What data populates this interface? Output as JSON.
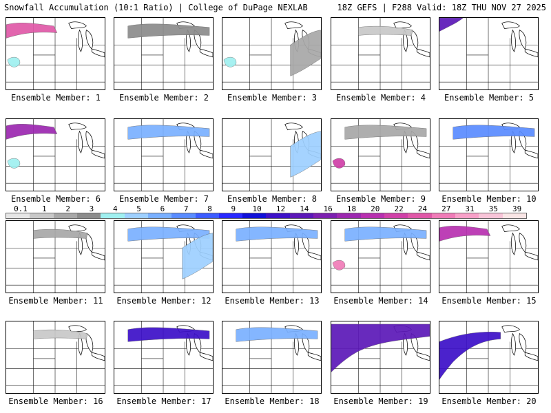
{
  "header": {
    "title": "Snowfall Accumulation (10:1 Ratio) | College of DuPage NEXLAB",
    "run_info": "18Z GEFS | F288 Valid: 18Z THU NOV 27 2025"
  },
  "members": [
    {
      "label": "Ensemble Member: 1",
      "snow": [
        {
          "v": 24,
          "blob": "nw-strip"
        },
        {
          "v": 4,
          "blob": "west-spot"
        }
      ]
    },
    {
      "label": "Ensemble Member: 2",
      "snow": [
        {
          "v": 3,
          "blob": "north-band"
        }
      ]
    },
    {
      "label": "Ensemble Member: 3",
      "snow": [
        {
          "v": 4,
          "blob": "west-spot"
        },
        {
          "v": 2,
          "blob": "east-band"
        }
      ]
    },
    {
      "label": "Ensemble Member: 4",
      "snow": [
        {
          "v": 1,
          "blob": "north-light"
        }
      ]
    },
    {
      "label": "Ensemble Member: 5",
      "snow": [
        {
          "v": 14,
          "blob": "nw-corner"
        }
      ]
    },
    {
      "label": "Ensemble Member: 6",
      "snow": [
        {
          "v": 18,
          "blob": "nw-strip"
        },
        {
          "v": 4,
          "blob": "west-spot"
        }
      ]
    },
    {
      "label": "Ensemble Member: 7",
      "snow": [
        {
          "v": 6,
          "blob": "north-band"
        }
      ]
    },
    {
      "label": "Ensemble Member: 8",
      "snow": [
        {
          "v": 5,
          "blob": "east-band"
        }
      ]
    },
    {
      "label": "Ensemble Member: 9",
      "snow": [
        {
          "v": 22,
          "blob": "west-spot"
        },
        {
          "v": 2,
          "blob": "north-band"
        }
      ]
    },
    {
      "label": "Ensemble Member: 10",
      "snow": [
        {
          "v": 7,
          "blob": "north-band"
        }
      ]
    },
    {
      "label": "Ensemble Member: 11",
      "snow": [
        {
          "v": 2,
          "blob": "north-light"
        }
      ]
    },
    {
      "label": "Ensemble Member: 12",
      "snow": [
        {
          "v": 6,
          "blob": "north-band"
        },
        {
          "v": 5,
          "blob": "east-band"
        }
      ]
    },
    {
      "label": "Ensemble Member: 13",
      "snow": [
        {
          "v": 6,
          "blob": "north-band"
        }
      ]
    },
    {
      "label": "Ensemble Member: 14",
      "snow": [
        {
          "v": 27,
          "blob": "west-spot"
        },
        {
          "v": 6,
          "blob": "north-band"
        }
      ]
    },
    {
      "label": "Ensemble Member: 15",
      "snow": [
        {
          "v": 20,
          "blob": "nw-strip"
        }
      ]
    },
    {
      "label": "Ensemble Member: 16",
      "snow": [
        {
          "v": 1,
          "blob": "north-light"
        }
      ]
    },
    {
      "label": "Ensemble Member: 17",
      "snow": [
        {
          "v": 12,
          "blob": "north-band"
        }
      ]
    },
    {
      "label": "Ensemble Member: 18",
      "snow": [
        {
          "v": 6,
          "blob": "north-band"
        }
      ]
    },
    {
      "label": "Ensemble Member: 19",
      "snow": [
        {
          "v": 14,
          "blob": "north-wide"
        }
      ]
    },
    {
      "label": "Ensemble Member: 20",
      "snow": [
        {
          "v": 12,
          "blob": "west-diag"
        }
      ]
    }
  ],
  "colorbar": {
    "labels": [
      "0.1",
      "1",
      "2",
      "3",
      "4",
      "5",
      "6",
      "7",
      "8",
      "9",
      "10",
      "12",
      "14",
      "16",
      "18",
      "20",
      "22",
      "24",
      "27",
      "31",
      "35",
      "39"
    ],
    "colors": [
      "#e6e6e6",
      "#c8c8c8",
      "#a8a8a8",
      "#8c8c8c",
      "#a0f0f0",
      "#9ed0ff",
      "#7ab0ff",
      "#5a8cff",
      "#3c5cff",
      "#2828ff",
      "#1010d8",
      "#3c10c8",
      "#5c18b8",
      "#7c20b0",
      "#9c28b0",
      "#b830b0",
      "#d040a8",
      "#e058a8",
      "#f07cb8",
      "#f8a0c8",
      "#f8c4d8",
      "#fae6e6"
    ]
  }
}
